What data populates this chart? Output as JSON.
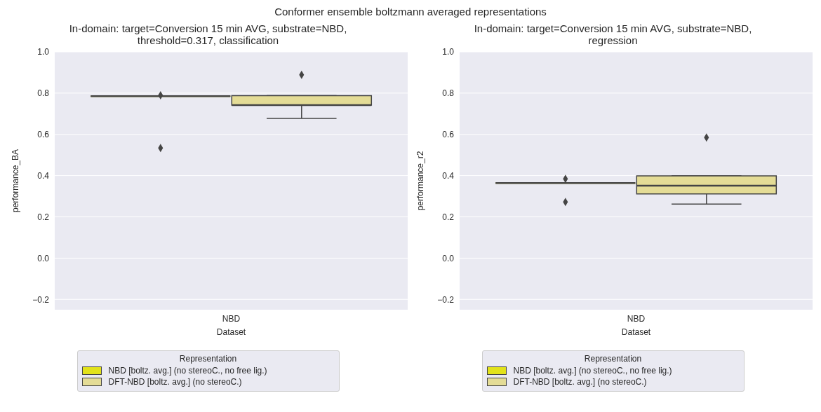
{
  "chart_data": [
    {
      "type": "box",
      "title": "In-domain: target=Conversion 15 min AVG, substrate=NBD, threshold=0.317, classification",
      "annotations": [
        "Conformer ensemble boltzmann averaged representations"
      ],
      "xlabel": "Dataset",
      "ylabel": "performance_BA",
      "categories": [
        "NBD"
      ],
      "ylim": [
        -0.25,
        1.0
      ],
      "yticks": [
        {
          "value": -0.2,
          "label": "−0.2"
        },
        {
          "value": 0,
          "label": "0.0"
        },
        0.2,
        0.4,
        0.6,
        0.8,
        {
          "value": 1,
          "label": "1.0"
        }
      ],
      "grid": "y",
      "legend": "bottom",
      "legend_title": "Representation",
      "marker": "diamond",
      "series": [
        {
          "name": "NBD [boltz. avg.] (no stereoC., no free lig.)",
          "color": "#e2e21a",
          "boxes": [
            {
              "low": 0.785,
              "q1": 0.785,
              "median": 0.785,
              "q3": 0.785,
              "high": 0.785,
              "outliers": [
                0.789,
                0.534
              ]
            }
          ]
        },
        {
          "name": "DFT-NBD [boltz. avg.] (no stereoC.)",
          "color": "#e4dc96",
          "boxes": [
            {
              "low": 0.677,
              "q1": 0.742,
              "median": 0.742,
              "q3": 0.788,
              "high": 0.788,
              "outliers": [
                0.889
              ]
            }
          ]
        }
      ]
    },
    {
      "type": "box",
      "title": "In-domain: target=Conversion 15 min AVG, substrate=NBD, regression",
      "xlabel": "Dataset",
      "ylabel": "performance_r2",
      "categories": [
        "NBD"
      ],
      "ylim": [
        -0.25,
        1.0
      ],
      "yticks": [
        {
          "value": -0.2,
          "label": "−0.2"
        },
        {
          "value": 0,
          "label": "0.0"
        },
        0.2,
        0.4,
        0.6,
        0.8,
        {
          "value": 1,
          "label": "1.0"
        }
      ],
      "grid": "y",
      "legend": "bottom",
      "legend_title": "Representation",
      "marker": "diamond",
      "series": [
        {
          "name": "NBD [boltz. avg.] (no stereoC., no free lig.)",
          "color": "#e2e21a",
          "boxes": [
            {
              "low": 0.364,
              "q1": 0.364,
              "median": 0.364,
              "q3": 0.364,
              "high": 0.364,
              "outliers": [
                0.384,
                0.272
              ]
            }
          ]
        },
        {
          "name": "DFT-NBD [boltz. avg.] (no stereoC.)",
          "color": "#e4dc96",
          "boxes": [
            {
              "low": 0.262,
              "q1": 0.311,
              "median": 0.351,
              "q3": 0.399,
              "high": 0.399,
              "outliers": [
                0.585
              ]
            }
          ]
        }
      ]
    }
  ]
}
